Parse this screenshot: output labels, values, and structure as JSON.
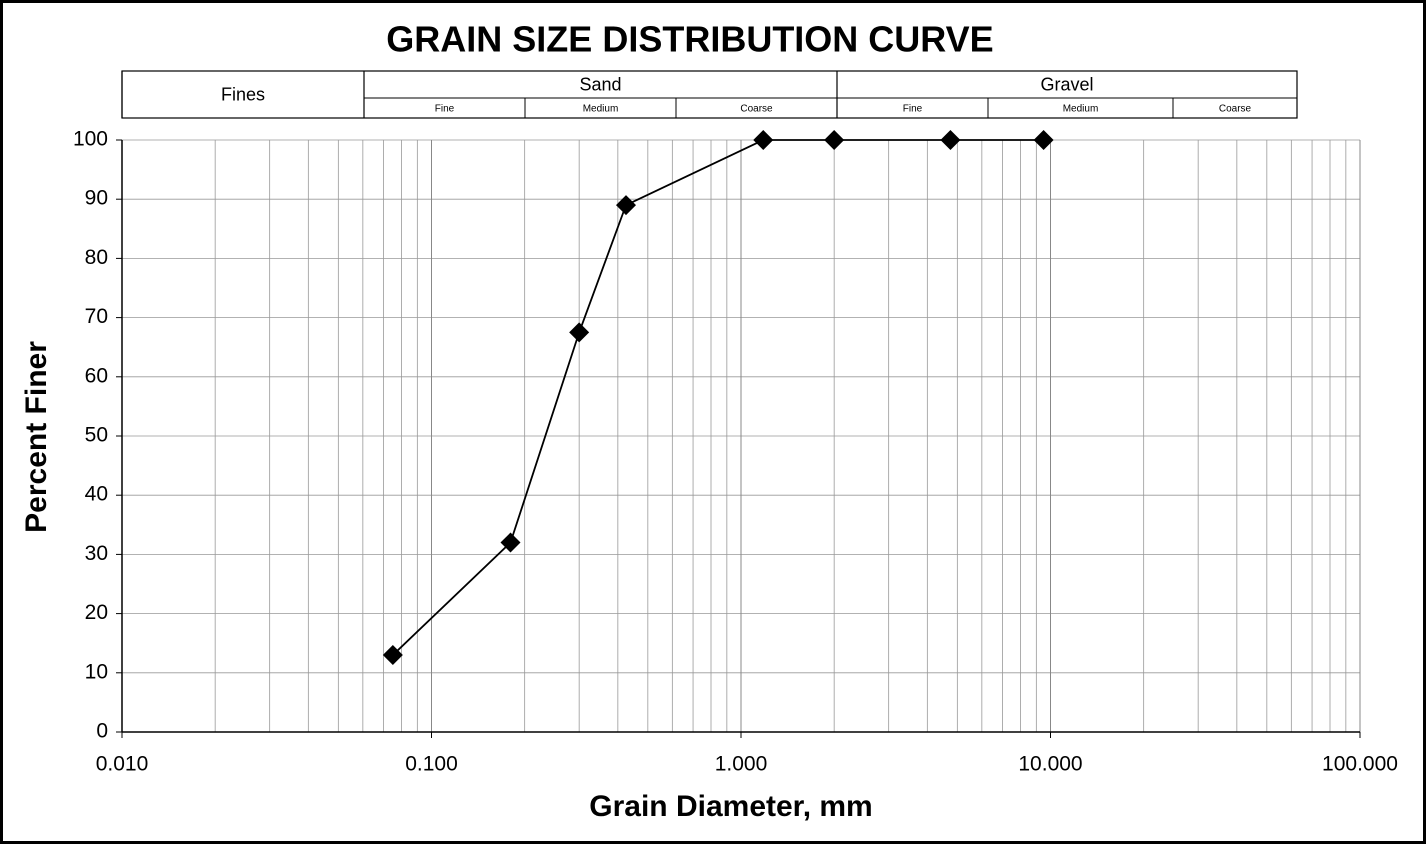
{
  "chart_data": {
    "type": "line",
    "title": "GRAIN SIZE DISTRIBUTION CURVE",
    "x_label": "Grain Diameter, mm",
    "y_label": "Percent Finer",
    "xscale": "log",
    "xlim": [
      0.01,
      100
    ],
    "xticks": [
      {
        "value": 0.01,
        "label": "0.010"
      },
      {
        "value": 0.1,
        "label": "0.100"
      },
      {
        "value": 1,
        "label": "1.000"
      },
      {
        "value": 10,
        "label": "10.000"
      },
      {
        "value": 100,
        "label": "100.000"
      }
    ],
    "ylim": [
      0,
      100
    ],
    "yticks": [
      0,
      10,
      20,
      30,
      40,
      50,
      60,
      70,
      80,
      90,
      100
    ],
    "grid": true,
    "minor_grid": true,
    "classification": [
      {
        "name": "Fines",
        "subdivisions": []
      },
      {
        "name": "Sand",
        "subdivisions": [
          "Fine",
          "Medium",
          "Coarse"
        ]
      },
      {
        "name": "Gravel",
        "subdivisions": [
          "Fine",
          "Medium",
          "Coarse"
        ]
      }
    ],
    "series": [
      {
        "color": "#000000",
        "marker": "diamond",
        "x": [
          0.075,
          0.18,
          0.3,
          0.425,
          1.18,
          2.0,
          4.75,
          9.5
        ],
        "values": [
          13,
          32,
          67.5,
          89,
          100,
          100,
          100,
          100
        ]
      }
    ]
  }
}
